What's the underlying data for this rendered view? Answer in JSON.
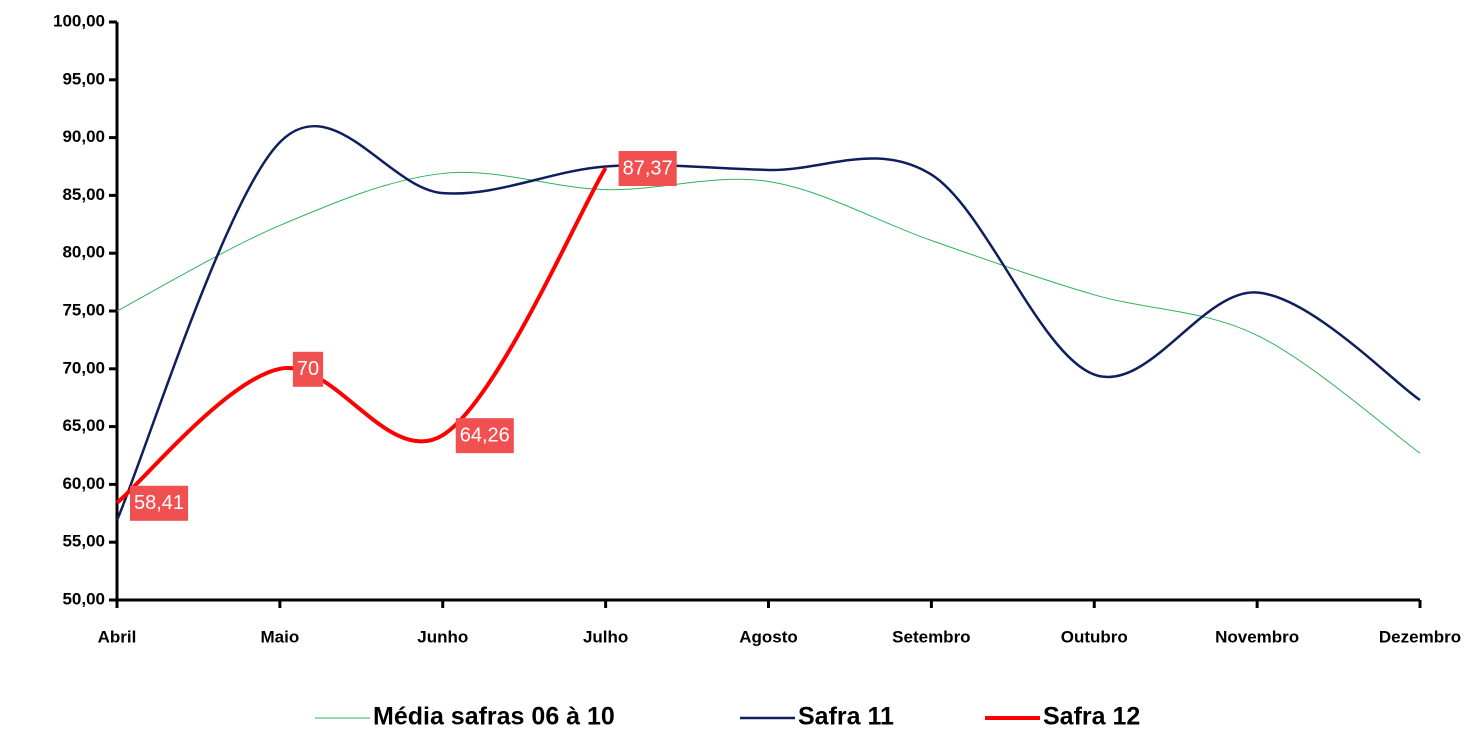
{
  "chart_data": {
    "type": "line",
    "categories": [
      "Abril",
      "Maio",
      "Junho",
      "Julho",
      "Agosto",
      "Setembro",
      "Outubro",
      "Novembro",
      "Dezembro"
    ],
    "series": [
      {
        "name": "Média safras 06 à 10",
        "color": "#2db35d",
        "width": 1,
        "values": [
          75.0,
          82.4,
          86.9,
          85.5,
          86.2,
          81.1,
          76.4,
          72.9,
          62.7
        ]
      },
      {
        "name": "Safra 11",
        "color": "#0e1f5b",
        "width": 2.5,
        "values": [
          56.9,
          89.6,
          85.2,
          87.5,
          87.2,
          86.8,
          69.5,
          76.6,
          67.3
        ]
      },
      {
        "name": "Safra 12",
        "color": "#ff0000",
        "width": 4,
        "values": [
          58.41,
          70,
          64.26,
          87.37,
          null,
          null,
          null,
          null,
          null
        ],
        "value_labels": [
          "58,41",
          "70",
          "64,26",
          "87,37",
          null,
          null,
          null,
          null,
          null
        ]
      }
    ],
    "ylim": [
      50,
      100
    ],
    "yticks": [
      {
        "value": 50,
        "label": "50,00"
      },
      {
        "value": 55,
        "label": "55,00"
      },
      {
        "value": 60,
        "label": "60,00"
      },
      {
        "value": 65,
        "label": "65,00"
      },
      {
        "value": 70,
        "label": "70,00"
      },
      {
        "value": 75,
        "label": "75,00"
      },
      {
        "value": 80,
        "label": "80,00"
      },
      {
        "value": 85,
        "label": "85,00"
      },
      {
        "value": 90,
        "label": "90,00"
      },
      {
        "value": 95,
        "label": "95,00"
      },
      {
        "value": 100,
        "label": "100,00"
      }
    ],
    "smooth": true,
    "legend": "bottom"
  }
}
